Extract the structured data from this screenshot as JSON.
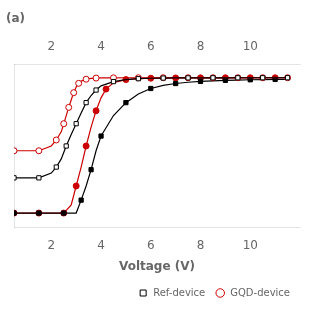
{
  "chart_data": {
    "type": "line",
    "title": "(a)",
    "xlabel": "Voltage (V)",
    "xlim": [
      0.5,
      12.0
    ],
    "xticks": [
      2,
      4,
      6,
      8,
      10
    ],
    "ylim": [
      3e-06,
      3.0
    ],
    "log": "y",
    "grid": false,
    "legend": "lower right",
    "tick_labels": "x",
    "series": [
      {
        "name": "Ref-device",
        "color": "#000000",
        "marker": "open_square",
        "line_style": "solid",
        "x": [
          0.5,
          1.0,
          1.5,
          2.0,
          2.2,
          2.4,
          2.6,
          2.8,
          3.0,
          3.2,
          3.4,
          3.6,
          3.8,
          4.0,
          4.5,
          5.0,
          5.5,
          6.0,
          6.5,
          7.0,
          7.5,
          8.0,
          8.5,
          9.0,
          9.5,
          10.0,
          10.5,
          11.0,
          11.5
        ],
        "values": [
          0.0002,
          0.0002,
          0.0002,
          0.0003,
          0.0005,
          0.001,
          0.003,
          0.008,
          0.02,
          0.05,
          0.12,
          0.22,
          0.35,
          0.5,
          0.72,
          0.85,
          0.92,
          0.955,
          0.972,
          0.982,
          0.987,
          0.99,
          0.992,
          0.994,
          0.995,
          0.996,
          0.997,
          0.9975,
          0.998
        ]
      },
      {
        "name": "GQD-device",
        "color": "#cc0000",
        "marker": "open_circle",
        "line_style": "solid",
        "x": [
          0.5,
          1.0,
          1.5,
          2.0,
          2.2,
          2.4,
          2.5,
          2.6,
          2.7,
          2.8,
          2.9,
          3.0,
          3.1,
          3.2,
          3.4,
          3.6,
          3.8,
          4.0,
          4.5,
          5.0,
          5.5,
          6.0,
          6.5,
          7.0,
          7.5,
          8.0,
          8.5,
          9.0,
          9.5,
          10.0,
          10.5,
          11.0,
          11.5
        ],
        "values": [
          0.002,
          0.002,
          0.002,
          0.003,
          0.005,
          0.01,
          0.02,
          0.04,
          0.08,
          0.15,
          0.28,
          0.45,
          0.62,
          0.75,
          0.88,
          0.94,
          0.97,
          0.982,
          0.992,
          0.996,
          0.9975,
          0.9982,
          0.9986,
          0.9989,
          0.9991,
          0.9992,
          0.9993,
          0.9994,
          0.9995,
          0.9995,
          0.9996,
          0.9996,
          0.9997
        ]
      },
      {
        "color": "#000000",
        "marker": "square",
        "line_style": "solid",
        "x": [
          0.5,
          1.0,
          1.5,
          2.0,
          2.5,
          3.0,
          3.2,
          3.4,
          3.6,
          3.8,
          4.0,
          4.5,
          5.0,
          5.5,
          6.0,
          6.5,
          7.0,
          7.5,
          8.0,
          8.5,
          9.0,
          9.5,
          10.0,
          10.5,
          11.0,
          11.5
        ],
        "values": [
          1e-05,
          1e-05,
          1e-05,
          1e-05,
          1e-05,
          1e-05,
          3e-05,
          0.0001,
          0.0004,
          0.002,
          0.007,
          0.04,
          0.12,
          0.25,
          0.4,
          0.52,
          0.61,
          0.68,
          0.73,
          0.77,
          0.8,
          0.82,
          0.84,
          0.855,
          0.865,
          0.872
        ]
      },
      {
        "color": "#cc0000",
        "marker": "circle",
        "line_style": "solid",
        "x": [
          0.5,
          1.0,
          1.5,
          2.0,
          2.5,
          2.8,
          3.0,
          3.2,
          3.4,
          3.6,
          3.8,
          4.0,
          4.2,
          4.5,
          5.0,
          5.5,
          6.0,
          6.5,
          7.0,
          7.5,
          8.0,
          8.5,
          9.0,
          9.5,
          10.0,
          10.5,
          11.0,
          11.5
        ],
        "values": [
          1e-05,
          1e-05,
          1e-05,
          1e-05,
          1e-05,
          2e-05,
          0.0001,
          0.0005,
          0.003,
          0.015,
          0.06,
          0.18,
          0.38,
          0.65,
          0.85,
          0.925,
          0.958,
          0.972,
          0.98,
          0.985,
          0.988,
          0.99,
          0.992,
          0.993,
          0.994,
          0.995,
          0.9955,
          0.996
        ]
      }
    ]
  }
}
